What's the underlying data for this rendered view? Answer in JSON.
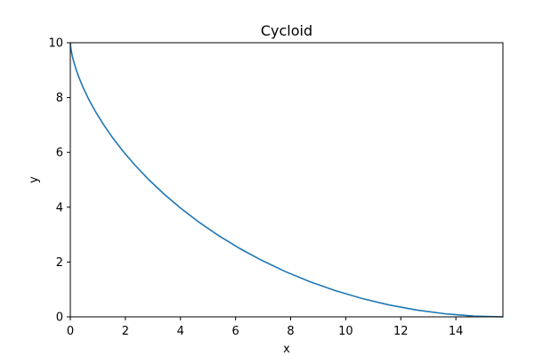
{
  "chart_data": {
    "type": "line",
    "title": "Cycloid",
    "x_label": "x",
    "y_label": "y",
    "series": [
      {
        "color": "#1f77b4",
        "x": [
          0,
          0.001,
          0.0076,
          0.0257,
          0.0607,
          0.118,
          0.2027,
          0.3195,
          0.4731,
          0.6673,
          0.9059,
          1.1919,
          1.5279,
          1.916,
          2.3578,
          2.854,
          3.405,
          4.0104,
          4.6695,
          5.3807,
          6.1419,
          6.9505,
          7.8035,
          8.6971,
          9.6274,
          10.59,
          11.5799,
          12.5921,
          13.6212,
          14.6617,
          15.708
        ],
        "values": [
          10,
          9.973,
          9.891,
          9.755,
          9.568,
          9.33,
          9.045,
          8.716,
          8.346,
          7.939,
          7.5,
          7.034,
          6.545,
          6.04,
          5.523,
          5,
          4.477,
          3.96,
          3.455,
          2.966,
          2.5,
          2.061,
          1.654,
          1.284,
          0.955,
          0.67,
          0.432,
          0.245,
          0.109,
          0.027,
          0
        ]
      }
    ],
    "xlim": [
      0,
      15.708
    ],
    "ylim": [
      0,
      10
    ],
    "xticks": [
      0,
      2,
      4,
      6,
      8,
      10,
      12,
      14
    ],
    "yticks": [
      0,
      2,
      4,
      6,
      8,
      10
    ],
    "grid": false
  }
}
